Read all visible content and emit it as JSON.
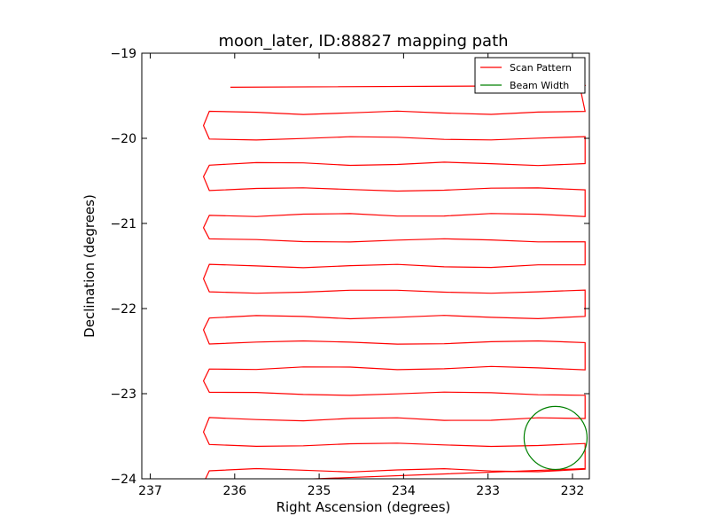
{
  "chart_data": {
    "type": "line",
    "title": "moon_later, ID:88827 mapping path",
    "xlabel": "Right Ascension (degrees)",
    "ylabel": "Declination (degrees)",
    "xlim": [
      237.1,
      231.8
    ],
    "ylim": [
      -24,
      -19
    ],
    "x_inverted": true,
    "xticks": [
      237,
      236,
      235,
      234,
      233,
      232
    ],
    "yticks": [
      -19,
      -20,
      -21,
      -22,
      -23,
      -24
    ],
    "xtick_labels": [
      "237",
      "236",
      "235",
      "234",
      "233",
      "232"
    ],
    "ytick_labels": [
      "−19",
      "−20",
      "−21",
      "−22",
      "−23",
      "−24"
    ],
    "grid": false,
    "legend_position": "top-right",
    "legend": [
      {
        "label": "Scan Pattern",
        "color": "#ff0000"
      },
      {
        "label": "Beam Width",
        "color": "#008000"
      }
    ],
    "series": [
      {
        "name": "Scan Pattern",
        "color": "#ff0000",
        "style": "raster",
        "rows_dec": [
          -19.4,
          -19.7,
          -20.0,
          -20.3,
          -20.6,
          -20.9,
          -21.2,
          -21.5,
          -21.8,
          -22.1,
          -22.4,
          -22.7,
          -23.0,
          -23.3,
          -23.6,
          -23.9
        ],
        "ra_east": 236.3,
        "ra_west": 231.85,
        "start": [
          236.05,
          -19.4
        ],
        "end": [
          231.85,
          -23.88
        ]
      },
      {
        "name": "Beam Width",
        "color": "#008000",
        "style": "circle",
        "center": [
          232.2,
          -23.52
        ],
        "radius_deg": 0.37
      }
    ]
  }
}
